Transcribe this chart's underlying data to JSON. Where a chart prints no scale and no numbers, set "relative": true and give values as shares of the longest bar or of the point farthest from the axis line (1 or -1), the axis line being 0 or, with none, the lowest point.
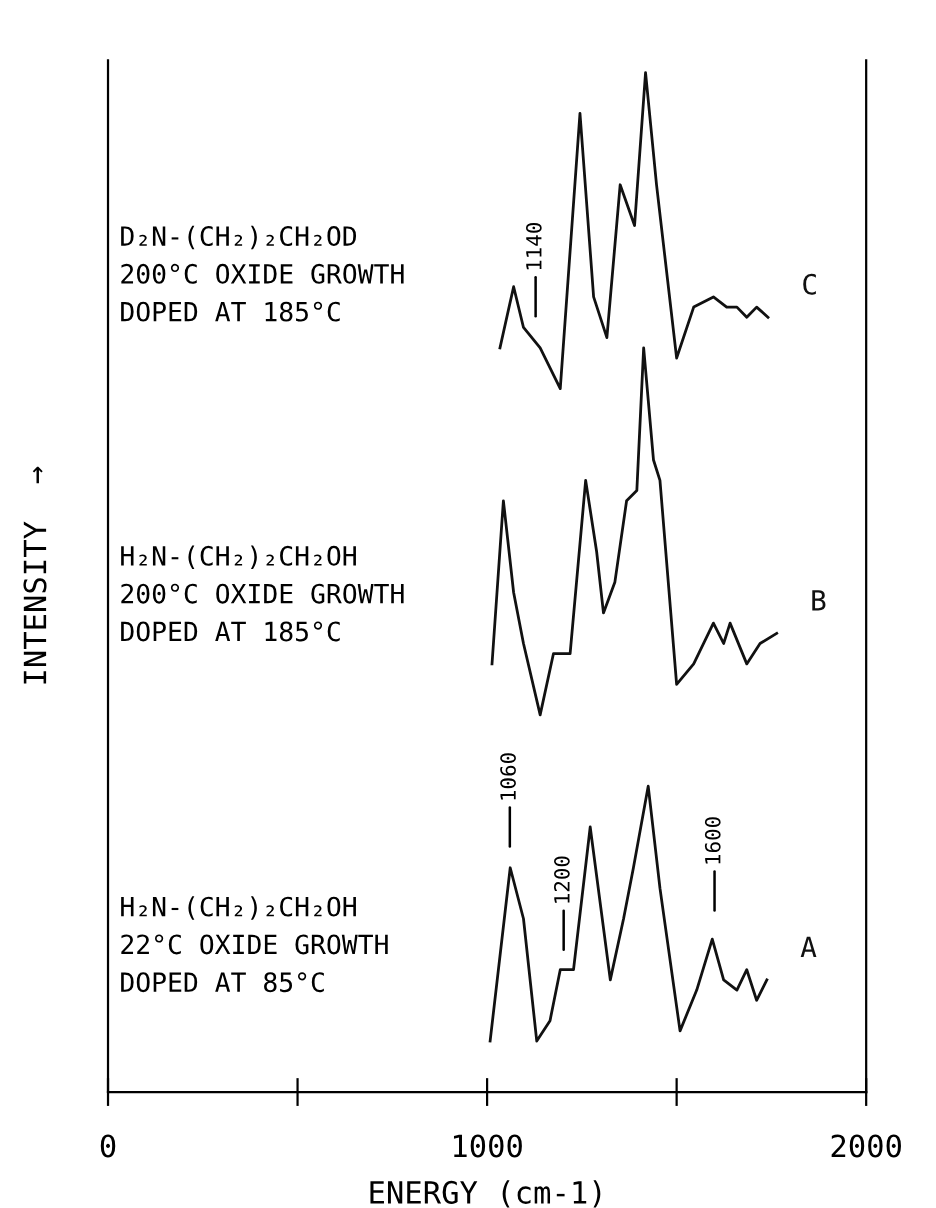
{
  "chart_data": {
    "type": "line",
    "relative": true,
    "xlabel": "ENERGY (cm-1)",
    "ylabel": "INTENSITY  →",
    "xlim": [
      0,
      2000
    ],
    "xticks": [
      0,
      {
        "value": 500,
        "label": null
      },
      1000,
      {
        "value": 1500,
        "label": null
      },
      2000
    ],
    "grid": false,
    "legend": false,
    "marker": "none",
    "line_style": "solid",
    "color": "#111111",
    "series": [
      {
        "name": "C",
        "x": [
          1034,
          1070,
          1096,
          1140,
          1193,
          1245,
          1281,
          1316,
          1351,
          1389,
          1418,
          1447,
          1500,
          1545,
          1597,
          1632,
          1659,
          1685,
          1711,
          1741
        ],
        "values": [
          0.73,
          0.79,
          0.75,
          0.73,
          0.69,
          0.96,
          0.78,
          0.74,
          0.89,
          0.85,
          1.0,
          0.89,
          0.72,
          0.77,
          0.78,
          0.77,
          0.77,
          0.76,
          0.77,
          0.76
        ]
      },
      {
        "name": "B",
        "x": [
          1013,
          1043,
          1070,
          1096,
          1140,
          1175,
          1219,
          1260,
          1289,
          1307,
          1337,
          1368,
          1395,
          1413,
          1439,
          1456,
          1500,
          1545,
          1597,
          1624,
          1641,
          1685,
          1720,
          1764
        ],
        "values": [
          0.42,
          0.58,
          0.49,
          0.44,
          0.37,
          0.43,
          0.43,
          0.6,
          0.53,
          0.47,
          0.5,
          0.58,
          0.59,
          0.73,
          0.62,
          0.6,
          0.4,
          0.42,
          0.46,
          0.44,
          0.46,
          0.42,
          0.44,
          0.45
        ]
      },
      {
        "name": "A",
        "x": [
          1008,
          1061,
          1096,
          1131,
          1166,
          1193,
          1228,
          1272,
          1325,
          1360,
          1386,
          1425,
          1456,
          1509,
          1553,
          1594,
          1624,
          1659,
          1685,
          1711,
          1738
        ],
        "values": [
          0.05,
          0.22,
          0.17,
          0.05,
          0.07,
          0.12,
          0.12,
          0.26,
          0.11,
          0.17,
          0.22,
          0.3,
          0.2,
          0.06,
          0.1,
          0.15,
          0.11,
          0.1,
          0.12,
          0.09,
          0.11
        ]
      }
    ],
    "annotations": [
      "D₂N-(CH₂)₂CH₂OD\n200°C OXIDE GROWTH\nDOPED AT 185°C",
      "H₂N-(CH₂)₂CH₂OH\n200°C OXIDE GROWTH\nDOPED AT 185°C",
      "H₂N-(CH₂)₂CH₂OH\n22°C OXIDE GROWTH\nDOPED AT 85°C",
      "1140",
      "1060",
      "1200",
      "1600"
    ]
  }
}
